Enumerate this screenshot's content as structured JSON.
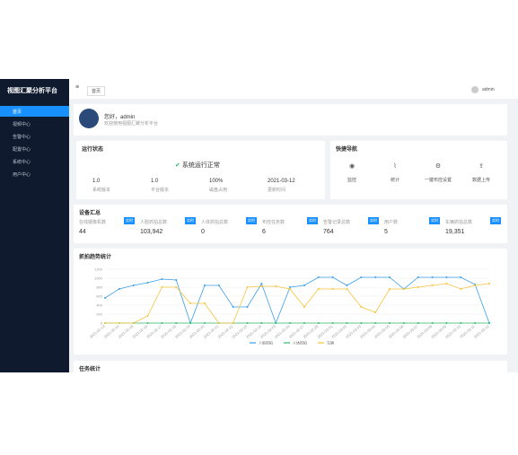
{
  "sidebar": {
    "title": "视图汇聚分析平台",
    "menu": [
      "首页",
      "视频中心",
      "告警中心",
      "配置中心",
      "系统中心",
      "用户中心"
    ]
  },
  "topbar": {
    "tab": "首页",
    "user": "admin"
  },
  "profile": {
    "name": "您好，admin",
    "desc": "欢迎使用视图汇聚分析平台"
  },
  "status_card": {
    "title": "运行状态",
    "status": "系统运行正常",
    "items": [
      {
        "value": "1.0",
        "label": "系统版本"
      },
      {
        "value": "1.0",
        "label": "平台版本"
      },
      {
        "value": "100%",
        "label": "磁盘占用"
      },
      {
        "value": "2021-03-12",
        "label": "更新时间"
      }
    ]
  },
  "nav_card": {
    "title": "快捷导航",
    "items": [
      "监控",
      "统计",
      "一键布控设置",
      "数据上传"
    ]
  },
  "stats": {
    "title": "设备汇总",
    "badge": "实时",
    "items": [
      {
        "label": "在线摄像机数",
        "value": "44"
      },
      {
        "label": "人脸抓拍总数",
        "value": "103,942"
      },
      {
        "label": "人体抓拍总数",
        "value": "0"
      },
      {
        "label": "布控任务数",
        "value": "6"
      },
      {
        "label": "告警记录总数",
        "value": "764"
      },
      {
        "label": "用户数",
        "value": "5"
      },
      {
        "label": "车辆抓拍总数",
        "value": "19,351"
      }
    ]
  },
  "chart_data": {
    "type": "line",
    "title": "抓拍趋势统计",
    "categories": [
      "2021-02-13",
      "2021-02-14",
      "2021-02-15",
      "2021-02-16",
      "2021-02-17",
      "2021-02-18",
      "2021-02-19",
      "2021-02-20",
      "2021-02-21",
      "2021-02-22",
      "2021-02-23",
      "2021-02-24",
      "2021-02-25",
      "2021-02-26",
      "2021-02-27",
      "2021-02-28",
      "2021-03-01",
      "2021-03-02",
      "2021-03-03",
      "2021-03-04",
      "2021-03-05",
      "2021-03-06",
      "2021-03-07",
      "2021-03-08",
      "2021-03-09",
      "2021-03-10",
      "2021-03-11",
      "2021-03-12"
    ],
    "series": [
      {
        "name": "人脸抓拍",
        "color": "#3a9ee8",
        "values": [
          560,
          760,
          840,
          900,
          980,
          960,
          0,
          840,
          840,
          360,
          360,
          880,
          0,
          800,
          840,
          1020,
          1020,
          840,
          1020,
          1020,
          1020,
          760,
          1020,
          1020,
          1020,
          1020,
          860,
          0
        ]
      },
      {
        "name": "人体抓拍",
        "color": "#2dbd6a",
        "values": [
          0,
          0,
          0,
          0,
          0,
          0,
          0,
          0,
          0,
          0,
          0,
          0,
          0,
          0,
          0,
          0,
          0,
          0,
          0,
          0,
          0,
          0,
          0,
          0,
          0,
          0,
          0,
          0
        ]
      },
      {
        "name": "车辆",
        "color": "#f5c33b",
        "values": [
          0,
          0,
          0,
          160,
          800,
          800,
          440,
          440,
          0,
          0,
          800,
          820,
          820,
          760,
          360,
          760,
          760,
          760,
          360,
          240,
          760,
          760,
          800,
          840,
          880,
          760,
          840,
          880
        ]
      }
    ],
    "ylim": [
      0,
      1200
    ],
    "yticks": [
      0,
      200,
      400,
      600,
      800,
      1000,
      1200
    ],
    "grid": true
  },
  "bottom_card": {
    "title": "任务统计"
  }
}
